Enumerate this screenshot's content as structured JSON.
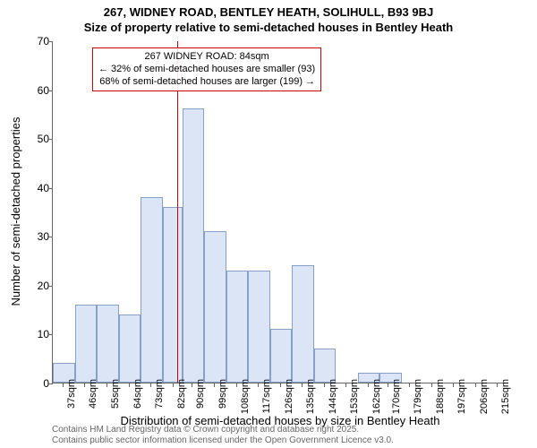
{
  "title_line1": "267, WIDNEY ROAD, BENTLEY HEATH, SOLIHULL, B93 9BJ",
  "title_line2": "Size of property relative to semi-detached houses in Bentley Heath",
  "y_axis_label": "Number of semi-detached properties",
  "x_axis_label": "Distribution of semi-detached houses by size in Bentley Heath",
  "footer_line1": "Contains HM Land Registry data © Crown copyright and database right 2025.",
  "footer_line2": "Contains public sector information licensed under the Open Government Licence v3.0.",
  "chart": {
    "type": "histogram",
    "ylim": [
      0,
      70
    ],
    "ytick_step": 10,
    "yticks": [
      0,
      10,
      20,
      30,
      40,
      50,
      60,
      70
    ],
    "xticks": [
      37,
      46,
      55,
      64,
      73,
      82,
      90,
      99,
      108,
      117,
      126,
      135,
      144,
      153,
      162,
      170,
      179,
      188,
      197,
      206,
      215
    ],
    "xtick_unit": "sqm",
    "xlim": [
      33,
      220
    ],
    "bar_fill": "#dbe5f6",
    "bar_stroke": "#87a0c8",
    "grid_color": "#666666",
    "background": "#ffffff",
    "ref_line_x": 84,
    "ref_line_color": "#cc0000",
    "bars": [
      {
        "x0": 33,
        "x1": 42,
        "y": 4
      },
      {
        "x0": 42,
        "x1": 51,
        "y": 16
      },
      {
        "x0": 51,
        "x1": 60,
        "y": 16
      },
      {
        "x0": 60,
        "x1": 69,
        "y": 14
      },
      {
        "x0": 69,
        "x1": 78,
        "y": 38
      },
      {
        "x0": 78,
        "x1": 86,
        "y": 36
      },
      {
        "x0": 86,
        "x1": 95,
        "y": 56
      },
      {
        "x0": 95,
        "x1": 104,
        "y": 31
      },
      {
        "x0": 104,
        "x1": 113,
        "y": 23
      },
      {
        "x0": 113,
        "x1": 122,
        "y": 23
      },
      {
        "x0": 122,
        "x1": 131,
        "y": 11
      },
      {
        "x0": 131,
        "x1": 140,
        "y": 24
      },
      {
        "x0": 140,
        "x1": 149,
        "y": 7
      },
      {
        "x0": 149,
        "x1": 158,
        "y": 0
      },
      {
        "x0": 158,
        "x1": 167,
        "y": 2
      },
      {
        "x0": 167,
        "x1": 176,
        "y": 2
      }
    ],
    "annotation": {
      "line1": "267 WIDNEY ROAD: 84sqm",
      "line2": "← 32% of semi-detached houses are smaller (93)",
      "line3": "68% of semi-detached houses are larger (199) →",
      "box_border": "#cc0000",
      "fontsize": 11
    }
  }
}
